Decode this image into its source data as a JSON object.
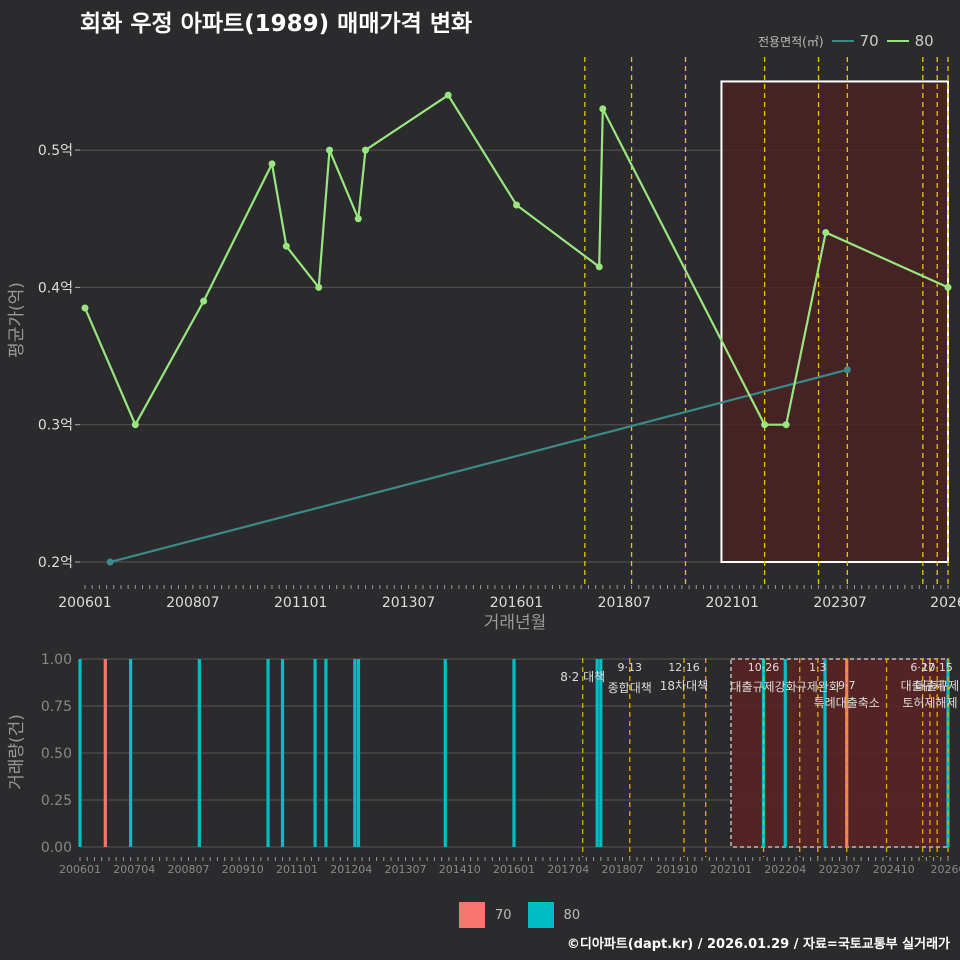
{
  "title": "회화 우정 아파트(1989) 매매가격 변화",
  "credit": "©디아파트(dapt.kr) / 2026.01.29 / 자료=국토교통부 실거래가",
  "legend_title": "전용면적(㎡)",
  "colors": {
    "s70": "#3a8a8a",
    "s80": "#99e680",
    "bar70": "#f8766d",
    "bar80": "#00bfc4",
    "vline": "#e6c800",
    "highlight": "#4f2020"
  },
  "chart_data": [
    {
      "type": "line",
      "title": "회화 우정 아파트(1989) 매매가격 변화",
      "xlabel": "거래년월",
      "ylabel": "평균가(억)",
      "xlim": [
        "2006-01",
        "2026-01"
      ],
      "ylim": [
        0.19,
        0.57
      ],
      "yticks": [
        0.2,
        0.3,
        0.4,
        0.5
      ],
      "ytick_labels": [
        "0.2억",
        "0.3억",
        "0.4억",
        "0.5억"
      ],
      "xticks": [
        "2006-01",
        "2008-07",
        "2011-01",
        "2013-07",
        "2016-01",
        "2018-07",
        "2021-01",
        "2023-07",
        "2026-01"
      ],
      "xtick_labels": [
        "200601",
        "200807",
        "201101",
        "201307",
        "201601",
        "201807",
        "202101",
        "202307",
        "2026"
      ],
      "highlight_range": {
        "x": [
          "2020-10",
          "2026-01"
        ],
        "y": [
          0.2,
          0.55
        ]
      },
      "vlines": [
        "2017-08",
        "2018-09",
        "2019-12",
        "2021-10",
        "2023-01",
        "2023-09",
        "2025-06",
        "2025-10",
        "2026-01"
      ],
      "series": [
        {
          "name": "70",
          "points": [
            [
              "2006-08",
              0.2
            ],
            [
              "2023-09",
              0.34
            ]
          ]
        },
        {
          "name": "80",
          "points": [
            [
              "2006-01",
              0.385
            ],
            [
              "2007-03",
              0.3
            ],
            [
              "2008-10",
              0.39
            ],
            [
              "2010-05",
              0.49
            ],
            [
              "2010-09",
              0.43
            ],
            [
              "2011-06",
              0.4
            ],
            [
              "2011-09",
              0.5
            ],
            [
              "2012-05",
              0.45
            ],
            [
              "2012-07",
              0.5
            ],
            [
              "2014-06",
              0.54
            ],
            [
              "2016-01",
              0.46
            ],
            [
              "2017-12",
              0.415
            ],
            [
              "2018-01",
              0.53
            ],
            [
              "2021-10",
              0.3
            ],
            [
              "2022-04",
              0.3
            ],
            [
              "2023-03",
              0.44
            ],
            [
              "2026-01",
              0.4
            ]
          ]
        }
      ]
    },
    {
      "type": "bar",
      "xlabel": "",
      "ylabel": "거래량(건)",
      "ylim": [
        0,
        1
      ],
      "yticks": [
        0,
        0.25,
        0.5,
        0.75,
        1
      ],
      "ytick_labels": [
        "0.00",
        "0.25",
        "0.50",
        "0.75",
        "1.00"
      ],
      "xticks": [
        "2006-01",
        "2007-04",
        "2008-07",
        "2009-10",
        "2011-01",
        "2012-04",
        "2013-07",
        "2014-10",
        "2016-01",
        "2017-04",
        "2018-07",
        "2019-10",
        "2021-01",
        "2022-04",
        "2023-07",
        "2024-10",
        "2026-01"
      ],
      "xtick_labels": [
        "200601",
        "200704",
        "200807",
        "200910",
        "201101",
        "201204",
        "201307",
        "201410",
        "201601",
        "201704",
        "201807",
        "201910",
        "202101",
        "202204",
        "202307",
        "202410",
        "20260"
      ],
      "highlight_range": {
        "x": [
          "2021-01",
          "2026-01"
        ]
      },
      "vlines": [
        "2017-08",
        "2018-09",
        "2019-12",
        "2020-06",
        "2021-10",
        "2022-08",
        "2023-01",
        "2023-09",
        "2024-08",
        "2025-06",
        "2025-08",
        "2025-10",
        "2026-01"
      ],
      "series": [
        {
          "name": "70",
          "bars": [
            [
              "2006-08",
              1
            ],
            [
              "2023-09",
              1
            ]
          ]
        },
        {
          "name": "80",
          "bars": [
            [
              "2006-01",
              1
            ],
            [
              "2007-03",
              1
            ],
            [
              "2008-10",
              1
            ],
            [
              "2010-05",
              1
            ],
            [
              "2010-09",
              1
            ],
            [
              "2011-06",
              1
            ],
            [
              "2011-09",
              1
            ],
            [
              "2012-05",
              1
            ],
            [
              "2012-06",
              1
            ],
            [
              "2014-06",
              1
            ],
            [
              "2016-01",
              1
            ],
            [
              "2017-12",
              1
            ],
            [
              "2018-01",
              1
            ],
            [
              "2021-10",
              1
            ],
            [
              "2022-04",
              1
            ],
            [
              "2023-03",
              1
            ],
            [
              "2026-01",
              1
            ]
          ]
        }
      ],
      "annotations": [
        {
          "x": "2017-08",
          "date": "8·2",
          "text": "8·2 대책"
        },
        {
          "x": "2018-09",
          "date": "9·13",
          "text": "종합대책"
        },
        {
          "x": "2019-12",
          "date": "12·16",
          "text": "18차대책"
        },
        {
          "x": "2021-10",
          "date": "10·26",
          "text": "대출규제강화"
        },
        {
          "x": "2023-01",
          "date": "1·3",
          "text": "규제완화"
        },
        {
          "x": "2023-09",
          "date": "9·7",
          "text": "특례대출축소"
        },
        {
          "x": "2025-06",
          "date": "6·27",
          "text": "대출규제"
        },
        {
          "x": "2025-10",
          "date": "10·15",
          "text": "대출규제"
        },
        {
          "x": "2025-08",
          "date": "",
          "text": "토허제해제"
        }
      ]
    }
  ],
  "legend": [
    {
      "label": "70"
    },
    {
      "label": "80"
    }
  ]
}
